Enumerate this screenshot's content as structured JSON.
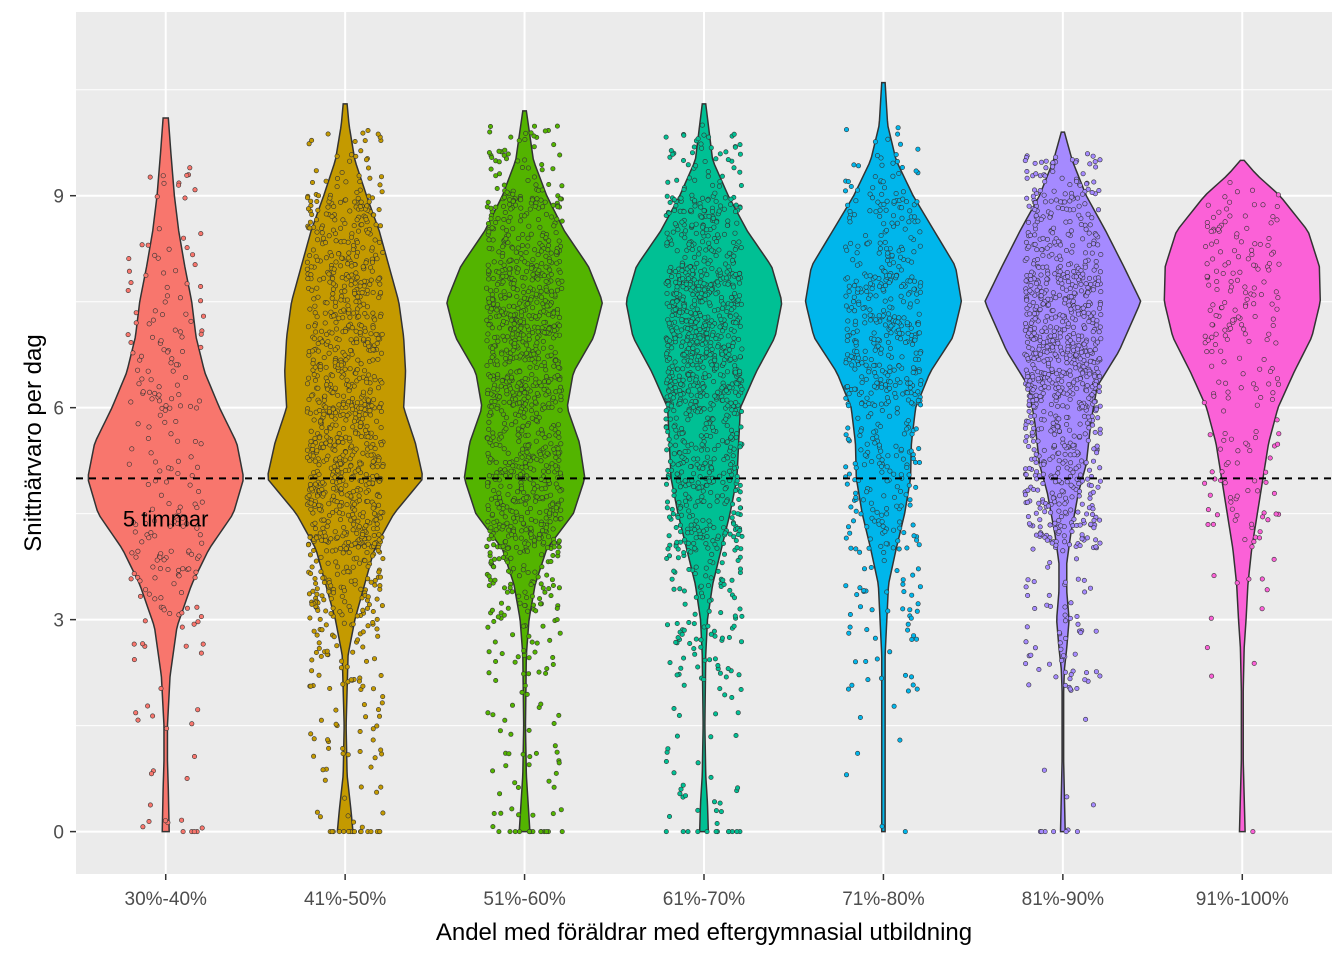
{
  "chart_data": {
    "type": "violin",
    "xlabel": "Andel med föräldrar med eftergymnasial utbildning",
    "ylabel": "Snittnärvaro per dag",
    "ylim": [
      -0.6,
      11.6
    ],
    "yticks": [
      0,
      3,
      6,
      9
    ],
    "yticks_labels": [
      "0",
      "3",
      "6",
      "9"
    ],
    "grid": true,
    "reference_line": {
      "y": 5,
      "label": "5 timmar",
      "style": "dashed"
    },
    "categories": [
      {
        "label": "30%-40%",
        "color": "#F8766D",
        "min": 0,
        "max": 10.1,
        "density": [
          [
            0,
            0.04
          ],
          [
            0.6,
            0.03
          ],
          [
            1.0,
            0.02
          ],
          [
            1.5,
            0.02
          ],
          [
            2.2,
            0.05
          ],
          [
            2.9,
            0.13
          ],
          [
            3.5,
            0.3
          ],
          [
            4.0,
            0.5
          ],
          [
            4.5,
            0.78
          ],
          [
            5.0,
            0.9
          ],
          [
            5.5,
            0.82
          ],
          [
            6.0,
            0.62
          ],
          [
            6.5,
            0.45
          ],
          [
            7.0,
            0.35
          ],
          [
            7.5,
            0.3
          ],
          [
            8.0,
            0.22
          ],
          [
            8.5,
            0.15
          ],
          [
            9.0,
            0.1
          ],
          [
            9.6,
            0.06
          ],
          [
            10.1,
            0.03
          ]
        ],
        "n_points": 230,
        "zeros": 4,
        "points_dist": [
          [
            0.5,
            0.02
          ],
          [
            1.5,
            0.03
          ],
          [
            2.5,
            0.05
          ],
          [
            3.5,
            0.12
          ],
          [
            4.5,
            0.2
          ],
          [
            5.5,
            0.18
          ],
          [
            6.5,
            0.13
          ],
          [
            7.5,
            0.12
          ],
          [
            8.5,
            0.08
          ],
          [
            9.5,
            0.04
          ]
        ]
      },
      {
        "label": "41%-50%",
        "color": "#C49A00",
        "min": 0,
        "max": 10.3,
        "density": [
          [
            0,
            0.08
          ],
          [
            0.3,
            0.06
          ],
          [
            0.8,
            0.02
          ],
          [
            1.5,
            0.01
          ],
          [
            2.5,
            0.03
          ],
          [
            3.0,
            0.1
          ],
          [
            3.5,
            0.2
          ],
          [
            4.0,
            0.3
          ],
          [
            4.5,
            0.5
          ],
          [
            5.0,
            0.8
          ],
          [
            5.5,
            0.72
          ],
          [
            6.0,
            0.6
          ],
          [
            6.5,
            0.62
          ],
          [
            7.0,
            0.6
          ],
          [
            7.5,
            0.55
          ],
          [
            8.0,
            0.45
          ],
          [
            8.5,
            0.35
          ],
          [
            9.0,
            0.22
          ],
          [
            9.5,
            0.1
          ],
          [
            10.0,
            0.04
          ],
          [
            10.3,
            0.02
          ]
        ],
        "n_points": 1100,
        "zeros": 16,
        "points_dist": [
          [
            1.0,
            0.01
          ],
          [
            2.0,
            0.02
          ],
          [
            3.0,
            0.05
          ],
          [
            4.0,
            0.1
          ],
          [
            5.0,
            0.19
          ],
          [
            6.0,
            0.17
          ],
          [
            7.0,
            0.16
          ],
          [
            8.0,
            0.14
          ],
          [
            9.0,
            0.1
          ],
          [
            10.0,
            0.03
          ]
        ]
      },
      {
        "label": "51%-60%",
        "color": "#53B400",
        "min": 0,
        "max": 10.2,
        "density": [
          [
            0,
            0.06
          ],
          [
            0.4,
            0.04
          ],
          [
            0.8,
            0.02
          ],
          [
            1.5,
            0.01
          ],
          [
            2.5,
            0.02
          ],
          [
            3.0,
            0.05
          ],
          [
            3.5,
            0.12
          ],
          [
            4.0,
            0.25
          ],
          [
            4.5,
            0.55
          ],
          [
            5.0,
            0.68
          ],
          [
            5.5,
            0.62
          ],
          [
            6.0,
            0.48
          ],
          [
            6.5,
            0.55
          ],
          [
            7.0,
            0.78
          ],
          [
            7.5,
            0.88
          ],
          [
            8.0,
            0.72
          ],
          [
            8.5,
            0.45
          ],
          [
            9.0,
            0.25
          ],
          [
            9.5,
            0.1
          ],
          [
            10.2,
            0.02
          ]
        ],
        "n_points": 1150,
        "zeros": 14,
        "points_dist": [
          [
            1.0,
            0.01
          ],
          [
            2.0,
            0.02
          ],
          [
            3.0,
            0.03
          ],
          [
            4.0,
            0.08
          ],
          [
            5.0,
            0.16
          ],
          [
            6.0,
            0.14
          ],
          [
            7.0,
            0.2
          ],
          [
            8.0,
            0.2
          ],
          [
            9.0,
            0.12
          ],
          [
            10.0,
            0.04
          ]
        ]
      },
      {
        "label": "61%-70%",
        "color": "#00C094",
        "min": 0,
        "max": 10.3,
        "density": [
          [
            0,
            0.05
          ],
          [
            0.4,
            0.04
          ],
          [
            0.8,
            0.02
          ],
          [
            1.5,
            0.01
          ],
          [
            2.5,
            0.02
          ],
          [
            3.0,
            0.04
          ],
          [
            3.5,
            0.1
          ],
          [
            4.0,
            0.2
          ],
          [
            4.5,
            0.3
          ],
          [
            5.0,
            0.38
          ],
          [
            5.5,
            0.4
          ],
          [
            6.0,
            0.42
          ],
          [
            6.5,
            0.6
          ],
          [
            7.0,
            0.82
          ],
          [
            7.5,
            0.9
          ],
          [
            8.0,
            0.78
          ],
          [
            8.5,
            0.5
          ],
          [
            9.0,
            0.28
          ],
          [
            9.5,
            0.1
          ],
          [
            10.3,
            0.02
          ]
        ],
        "n_points": 1150,
        "zeros": 12,
        "points_dist": [
          [
            1.0,
            0.01
          ],
          [
            2.0,
            0.01
          ],
          [
            3.0,
            0.03
          ],
          [
            4.0,
            0.07
          ],
          [
            5.0,
            0.12
          ],
          [
            6.0,
            0.13
          ],
          [
            7.0,
            0.22
          ],
          [
            8.0,
            0.24
          ],
          [
            9.0,
            0.13
          ],
          [
            10.0,
            0.04
          ]
        ]
      },
      {
        "label": "71%-80%",
        "color": "#00B6EB",
        "min": 0,
        "max": 10.6,
        "density": [
          [
            0,
            0.02
          ],
          [
            1.0,
            0.02
          ],
          [
            2.0,
            0.02
          ],
          [
            2.5,
            0.02
          ],
          [
            3.0,
            0.04
          ],
          [
            3.5,
            0.06
          ],
          [
            4.0,
            0.15
          ],
          [
            4.5,
            0.25
          ],
          [
            5.0,
            0.32
          ],
          [
            5.5,
            0.33
          ],
          [
            6.0,
            0.38
          ],
          [
            6.5,
            0.55
          ],
          [
            7.0,
            0.82
          ],
          [
            7.5,
            0.92
          ],
          [
            8.0,
            0.85
          ],
          [
            8.5,
            0.6
          ],
          [
            9.0,
            0.35
          ],
          [
            9.5,
            0.15
          ],
          [
            10.0,
            0.05
          ],
          [
            10.6,
            0.02
          ]
        ],
        "n_points": 600,
        "zeros": 1,
        "points_dist": [
          [
            1.0,
            0.005
          ],
          [
            2.0,
            0.01
          ],
          [
            3.0,
            0.03
          ],
          [
            4.0,
            0.06
          ],
          [
            5.0,
            0.12
          ],
          [
            6.0,
            0.13
          ],
          [
            7.0,
            0.22
          ],
          [
            8.0,
            0.24
          ],
          [
            9.0,
            0.14
          ],
          [
            10.0,
            0.05
          ]
        ]
      },
      {
        "label": "81%-90%",
        "color": "#A58AFF",
        "min": 0,
        "max": 9.9,
        "density": [
          [
            0,
            0.03
          ],
          [
            0.5,
            0.02
          ],
          [
            1.0,
            0.01
          ],
          [
            2.0,
            0.01
          ],
          [
            2.3,
            0.02
          ],
          [
            2.6,
            0.05
          ],
          [
            3.0,
            0.08
          ],
          [
            3.4,
            0.05
          ],
          [
            3.8,
            0.05
          ],
          [
            4.2,
            0.1
          ],
          [
            4.8,
            0.2
          ],
          [
            5.2,
            0.3
          ],
          [
            5.8,
            0.36
          ],
          [
            6.3,
            0.44
          ],
          [
            6.8,
            0.72
          ],
          [
            7.5,
            1.0
          ],
          [
            8.0,
            0.78
          ],
          [
            8.5,
            0.55
          ],
          [
            9.0,
            0.3
          ],
          [
            9.5,
            0.12
          ],
          [
            9.9,
            0.02
          ]
        ],
        "n_points": 1000,
        "zeros": 6,
        "points_dist": [
          [
            1.0,
            0.003
          ],
          [
            2.0,
            0.005
          ],
          [
            3.0,
            0.04
          ],
          [
            4.0,
            0.03
          ],
          [
            5.0,
            0.12
          ],
          [
            6.0,
            0.14
          ],
          [
            7.0,
            0.25
          ],
          [
            8.0,
            0.24
          ],
          [
            9.0,
            0.13
          ],
          [
            9.6,
            0.04
          ]
        ]
      },
      {
        "label": "91%-100%",
        "color": "#FB61D7",
        "min": 0,
        "max": 9.5,
        "density": [
          [
            0,
            0.03
          ],
          [
            1.0,
            0.01
          ],
          [
            2.0,
            0.01
          ],
          [
            2.6,
            0.02
          ],
          [
            3.0,
            0.04
          ],
          [
            3.5,
            0.06
          ],
          [
            4.0,
            0.1
          ],
          [
            4.5,
            0.16
          ],
          [
            5.0,
            0.22
          ],
          [
            5.5,
            0.28
          ],
          [
            6.0,
            0.38
          ],
          [
            6.5,
            0.55
          ],
          [
            7.0,
            0.74
          ],
          [
            7.5,
            0.83
          ],
          [
            8.0,
            0.82
          ],
          [
            8.5,
            0.7
          ],
          [
            9.0,
            0.4
          ],
          [
            9.3,
            0.15
          ],
          [
            9.5,
            0.02
          ]
        ],
        "n_points": 220,
        "zeros": 1,
        "points_dist": [
          [
            2.0,
            0.01
          ],
          [
            3.0,
            0.02
          ],
          [
            4.0,
            0.04
          ],
          [
            5.0,
            0.09
          ],
          [
            6.0,
            0.12
          ],
          [
            7.0,
            0.22
          ],
          [
            8.0,
            0.27
          ],
          [
            8.8,
            0.18
          ],
          [
            9.2,
            0.05
          ]
        ]
      }
    ]
  }
}
